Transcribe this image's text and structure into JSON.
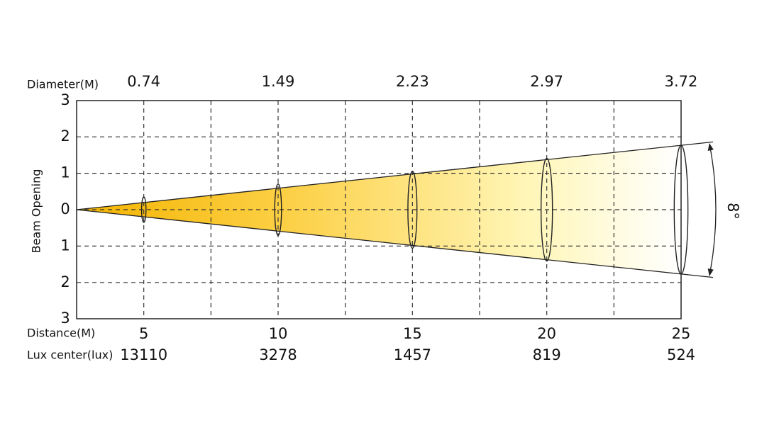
{
  "header": {
    "diameter_label": "Diameter(M)",
    "distance_label": "Distance(M)",
    "lux_label": "Lux center(lux)",
    "y_axis_label": "Beam Opening",
    "beam_angle": "8°"
  },
  "yticks": [
    {
      "value": 3,
      "label": "3"
    },
    {
      "value": 2,
      "label": "2"
    },
    {
      "value": 1,
      "label": "1"
    },
    0,
    {
      "value": -1,
      "label": "1"
    },
    {
      "value": -2,
      "label": "2"
    },
    {
      "value": -3,
      "label": "3"
    }
  ],
  "columns": [
    {
      "distance": 5,
      "diameter": 0.74,
      "lux": 13110
    },
    {
      "distance": 10,
      "diameter": 1.49,
      "lux": 3278
    },
    {
      "distance": 15,
      "diameter": 2.23,
      "lux": 1457
    },
    {
      "distance": 20,
      "diameter": 2.97,
      "lux": 819
    },
    {
      "distance": 25,
      "diameter": 3.72,
      "lux": 524
    }
  ]
}
